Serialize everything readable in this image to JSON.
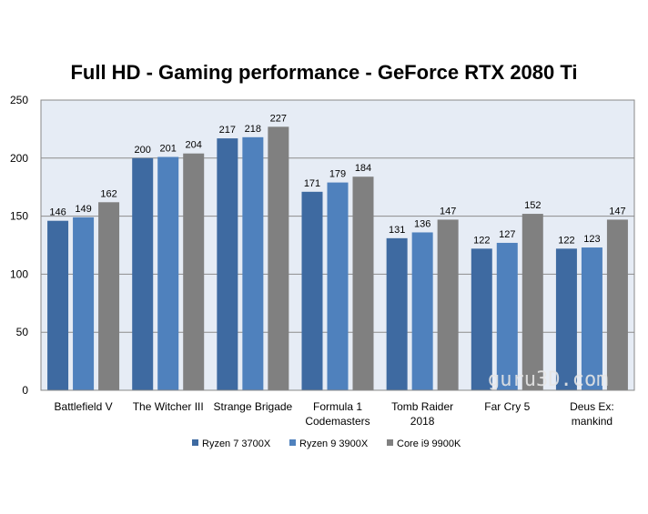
{
  "chart_data": {
    "type": "bar",
    "title": "Full HD - Gaming performance - GeForce RTX 2080 Ti",
    "xlabel": "",
    "ylabel": "",
    "ylim": [
      0,
      250
    ],
    "yticks": [
      0,
      50,
      100,
      150,
      200,
      250
    ],
    "grid": true,
    "legend_position": "bottom",
    "categories": [
      [
        "Battlefield V"
      ],
      [
        "The Witcher III"
      ],
      [
        "Strange Brigade"
      ],
      [
        "Formula 1",
        "Codemasters"
      ],
      [
        "Tomb Raider",
        "2018"
      ],
      [
        "Far Cry 5"
      ],
      [
        "Deus Ex:",
        "mankind"
      ]
    ],
    "series": [
      {
        "name": "Ryzen 7 3700X",
        "color": "#3e6aa1",
        "values": [
          146,
          200,
          217,
          171,
          131,
          122,
          122
        ]
      },
      {
        "name": "Ryzen 9 3900X",
        "color": "#4f81bd",
        "values": [
          149,
          201,
          218,
          179,
          136,
          127,
          123
        ]
      },
      {
        "name": "Core i9 9900K",
        "color": "#808080",
        "values": [
          162,
          204,
          227,
          184,
          147,
          152,
          147
        ]
      }
    ],
    "plot_background": "#e6ecf5"
  },
  "watermark": "guru3D.com"
}
